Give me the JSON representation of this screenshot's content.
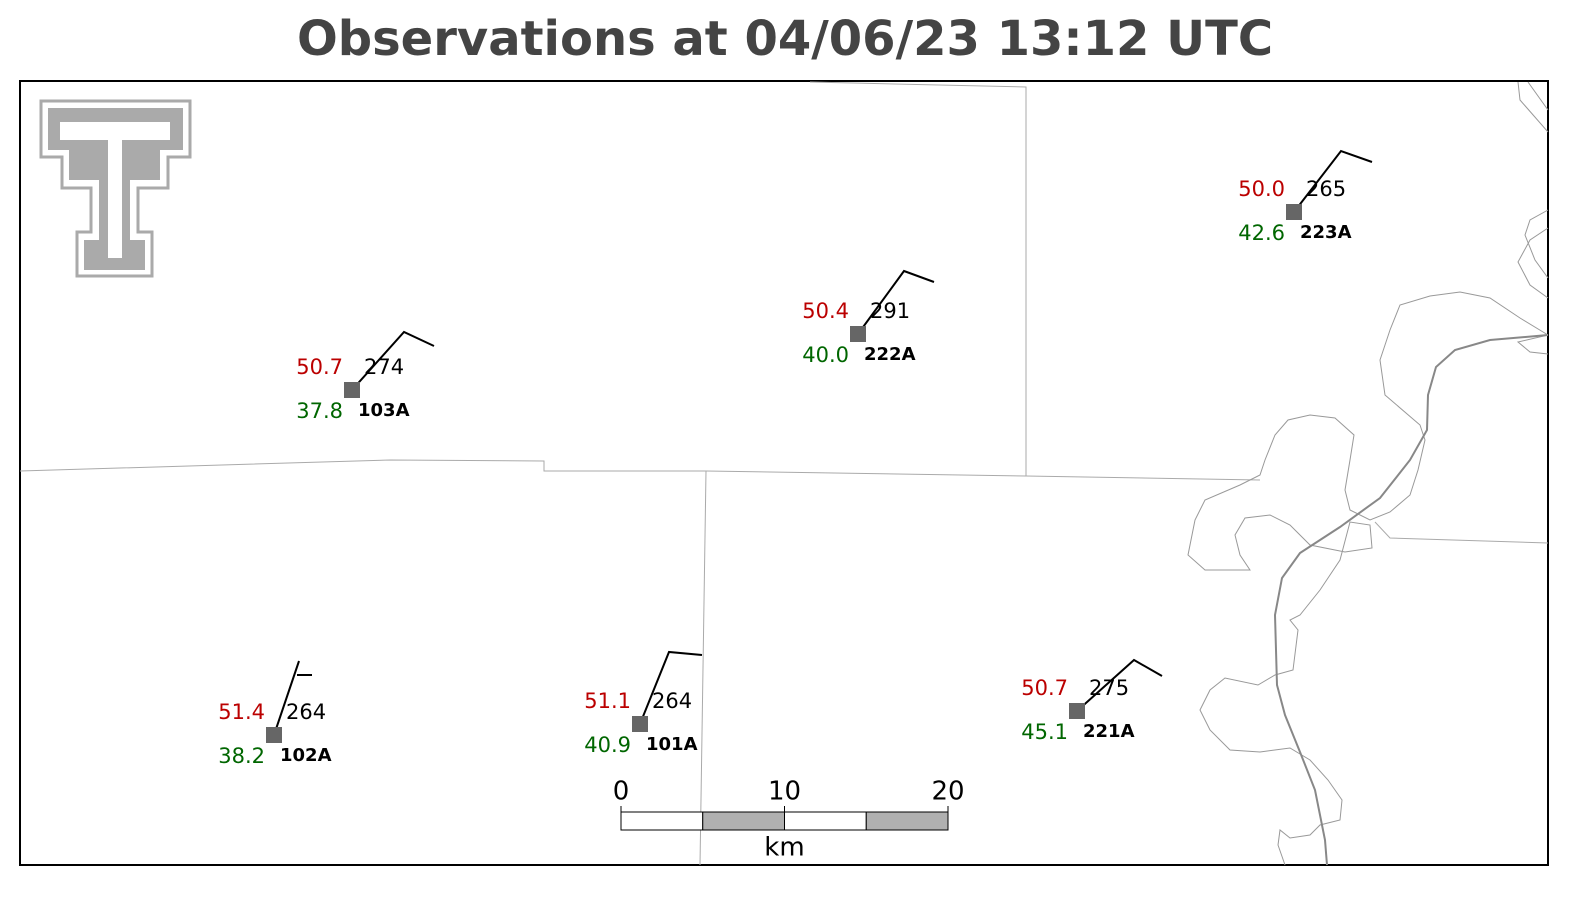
{
  "title": "Observations at 04/06/23 13:12 UTC",
  "stations": [
    {
      "id": "103A",
      "temperature": "50.7",
      "dewpoint": "37.8",
      "value": "274"
    },
    {
      "id": "222A",
      "temperature": "50.4",
      "dewpoint": "40.0",
      "value": "291"
    },
    {
      "id": "223A",
      "temperature": "50.0",
      "dewpoint": "42.6",
      "value": "265"
    },
    {
      "id": "102A",
      "temperature": "51.4",
      "dewpoint": "38.2",
      "value": "264"
    },
    {
      "id": "101A",
      "temperature": "51.1",
      "dewpoint": "40.9",
      "value": "264"
    },
    {
      "id": "221A",
      "temperature": "50.7",
      "dewpoint": "45.1",
      "value": "275"
    }
  ],
  "scale_bar": {
    "ticks": [
      0,
      10,
      20
    ],
    "unit": "km"
  }
}
